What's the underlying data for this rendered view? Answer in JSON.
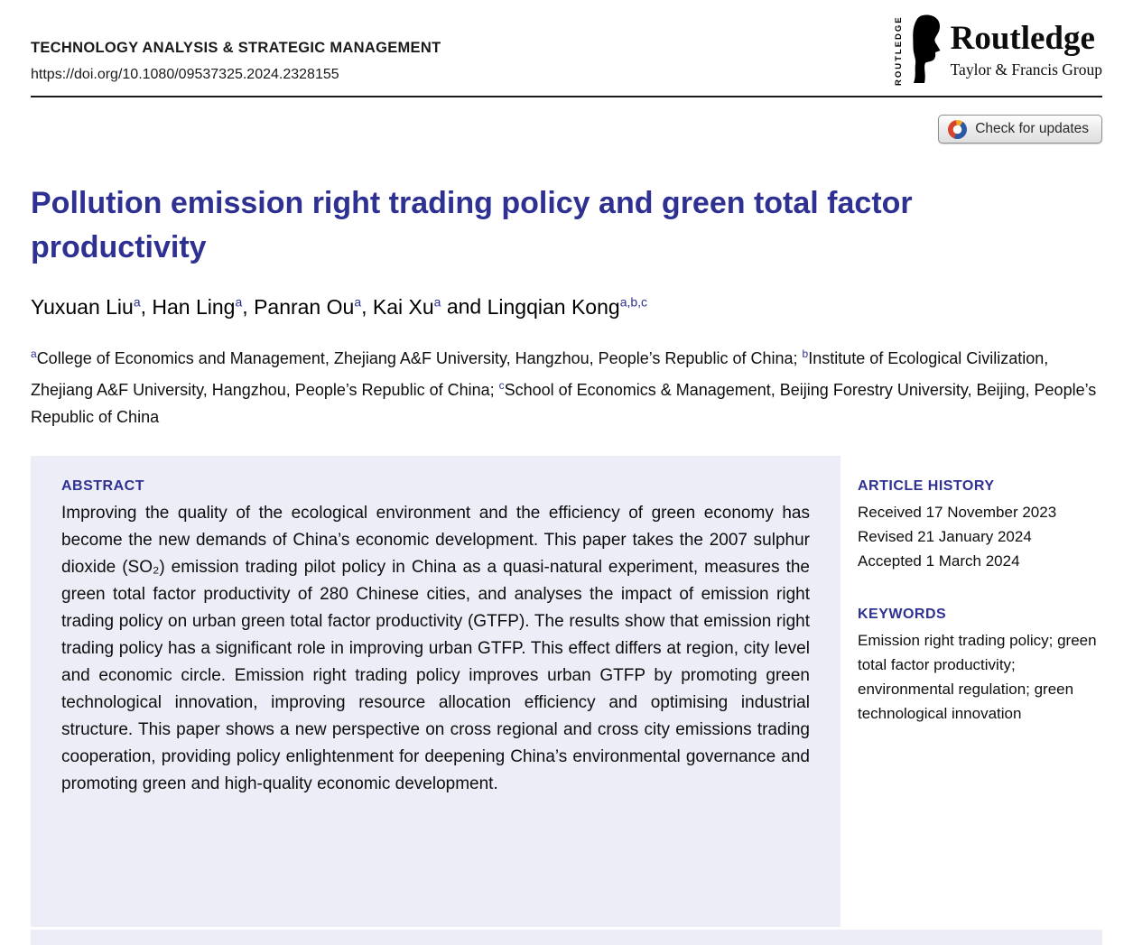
{
  "header": {
    "journal_name": "TECHNOLOGY ANALYSIS & STRATEGIC MANAGEMENT",
    "doi": "https://doi.org/10.1080/09537325.2024.2328155",
    "logo": {
      "vertical_text": "ROUTLEDGE",
      "publisher": "Routledge",
      "group": "Taylor & Francis Group"
    },
    "check_updates_label": "Check for updates"
  },
  "article": {
    "title": "Pollution emission right trading policy and green total factor productivity",
    "authors": [
      {
        "name": "Yuxuan Liu",
        "sup": "a",
        "sep": ",  "
      },
      {
        "name": "Han Ling",
        "sup": "a",
        "sep": ",  "
      },
      {
        "name": "Panran Ou",
        "sup": "a",
        "sep": ",  "
      },
      {
        "name": "Kai Xu",
        "sup": "a",
        "sep": "  and  "
      },
      {
        "name": "Lingqian Kong",
        "sup": "a,b,c",
        "sep": ""
      }
    ],
    "affiliations": [
      {
        "sup": "a",
        "text": "College of Economics and Management, Zhejiang A&F University, Hangzhou, People’s Republic of China; "
      },
      {
        "sup": "b",
        "text": "Institute of Ecological Civilization, Zhejiang A&F University, Hangzhou, People’s Republic of China; "
      },
      {
        "sup": "c",
        "text": "School of Economics & Management, Beijing Forestry University, Beijing, People’s Republic of China"
      }
    ]
  },
  "abstract": {
    "heading": "ABSTRACT",
    "body": "Improving the quality of the ecological environment and the efficiency of green economy has become the new demands of China’s economic development. This paper takes the 2007 sulphur dioxide (SO₂) emission trading pilot policy in China as a quasi-natural experiment, measures the green total factor productivity of 280 Chinese cities, and analyses the impact of emission right trading policy on urban green total factor productivity (GTFP). The results show that emission right trading policy has a significant role in improving urban GTFP. This effect differs at region, city level and economic circle. Emission right trading policy improves urban GTFP by promoting green technological innovation, improving resource allocation efficiency and optimising industrial structure. This paper shows a new perspective on cross regional and cross city emissions trading cooperation, providing policy enlightenment for deepening China’s environmental governance and promoting green and high-quality economic development."
  },
  "sidebar": {
    "history_heading": "ARTICLE HISTORY",
    "history_items": [
      "Received 17 November 2023",
      "Revised 21 January 2024",
      "Accepted 1 March 2024"
    ],
    "keywords_heading": "KEYWORDS",
    "keywords_text": "Emission right trading policy; green total factor productivity; environmental regulation; green technological innovation"
  },
  "colors": {
    "accent_navy": "#2e3192",
    "abstract_bg": "#ecedf6"
  }
}
